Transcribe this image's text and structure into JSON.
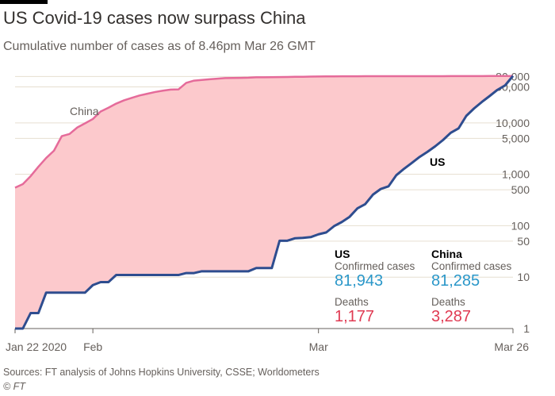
{
  "title": "US Covid-19 cases now surpass China",
  "subtitle": "Cumulative number of cases as of 8.46pm Mar 26 GMT",
  "source": "Sources: FT analysis of Johns Hopkins University, CSSE; Worldometers",
  "credit": "© FT",
  "colors": {
    "us_line": "#2e4d8f",
    "china_line": "#e56b9a",
    "gap_fill": "#fcc9cc",
    "grid": "#e6dfd0",
    "cases": "#2a97c9",
    "deaths": "#e03a52"
  },
  "stats": {
    "us": {
      "header": "US",
      "cases_label": "Confirmed cases",
      "cases": "81,943",
      "deaths_label": "Deaths",
      "deaths": "1,177"
    },
    "china": {
      "header": "China",
      "cases_label": "Confirmed cases",
      "cases": "81,285",
      "deaths_label": "Deaths",
      "deaths": "3,287"
    }
  },
  "chart_data": {
    "type": "line",
    "scale_y": "log",
    "ylim": [
      1,
      90000
    ],
    "x": [
      "Jan 22",
      "Jan 23",
      "Jan 24",
      "Jan 25",
      "Jan 26",
      "Jan 27",
      "Jan 28",
      "Jan 29",
      "Jan 30",
      "Jan 31",
      "Feb 1",
      "Feb 2",
      "Feb 3",
      "Feb 4",
      "Feb 5",
      "Feb 6",
      "Feb 7",
      "Feb 8",
      "Feb 9",
      "Feb 10",
      "Feb 11",
      "Feb 12",
      "Feb 13",
      "Feb 14",
      "Feb 15",
      "Feb 16",
      "Feb 17",
      "Feb 18",
      "Feb 19",
      "Feb 20",
      "Feb 21",
      "Feb 22",
      "Feb 23",
      "Feb 24",
      "Feb 25",
      "Feb 26",
      "Feb 27",
      "Feb 28",
      "Feb 29",
      "Mar 1",
      "Mar 2",
      "Mar 3",
      "Mar 4",
      "Mar 5",
      "Mar 6",
      "Mar 7",
      "Mar 8",
      "Mar 9",
      "Mar 10",
      "Mar 11",
      "Mar 12",
      "Mar 13",
      "Mar 14",
      "Mar 15",
      "Mar 16",
      "Mar 17",
      "Mar 18",
      "Mar 19",
      "Mar 20",
      "Mar 21",
      "Mar 22",
      "Mar 23",
      "Mar 24",
      "Mar 25",
      "Mar 26"
    ],
    "x_ticks": [
      "Jan 22 2020",
      "Feb",
      "Mar",
      "Mar 26"
    ],
    "x_tick_dates": [
      "Jan 22",
      "Feb 1",
      "Mar 1",
      "Mar 26"
    ],
    "y_ticks": [
      80000,
      50000,
      10000,
      5000,
      1000,
      500,
      100,
      50,
      10,
      1
    ],
    "y_tick_labels": [
      "80,000",
      "50,000",
      "10,000",
      "5,000",
      "1,000",
      "500",
      "100",
      "50",
      "10",
      "1"
    ],
    "series": [
      {
        "name": "China",
        "values": [
          548,
          643,
          920,
          1406,
          2075,
          2877,
          5509,
          6087,
          8141,
          9802,
          11891,
          16630,
          19716,
          23707,
          27440,
          30587,
          34110,
          36814,
          39829,
          42354,
          44386,
          44759,
          59895,
          66358,
          68413,
          70513,
          72434,
          74211,
          74619,
          75077,
          75550,
          77001,
          77022,
          77241,
          77754,
          78166,
          78600,
          78928,
          79356,
          79932,
          80136,
          80261,
          80386,
          80537,
          80690,
          80770,
          80823,
          80860,
          80887,
          80921,
          80932,
          80945,
          80977,
          81003,
          81033,
          81058,
          81102,
          81156,
          81250,
          81305,
          81397,
          81496,
          81591,
          81661,
          81285
        ]
      },
      {
        "name": "US",
        "values": [
          1,
          1,
          2,
          2,
          5,
          5,
          5,
          5,
          5,
          5,
          7,
          8,
          8,
          11,
          11,
          11,
          11,
          11,
          11,
          11,
          11,
          11,
          12,
          12,
          13,
          13,
          13,
          13,
          13,
          13,
          13,
          15,
          15,
          15,
          51,
          51,
          57,
          58,
          60,
          68,
          74,
          98,
          118,
          149,
          217,
          262,
          402,
          518,
          583,
          959,
          1281,
          1663,
          2179,
          2726,
          3499,
          4632,
          6421,
          7786,
          13680,
          19101,
          25493,
          33276,
          43847,
          53740,
          81943
        ]
      }
    ],
    "annotations": [
      "China",
      "US"
    ]
  }
}
